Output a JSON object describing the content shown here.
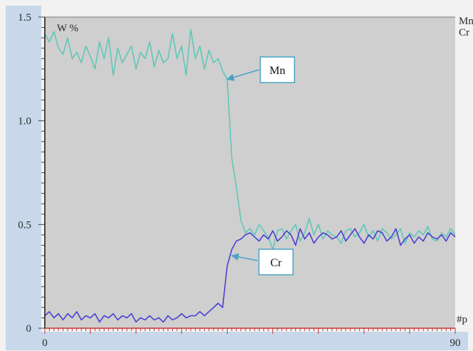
{
  "chart_data": {
    "type": "line",
    "title": "",
    "ylabel": "W %",
    "xlabel": "#p",
    "xlim": [
      0,
      90
    ],
    "ylim": [
      0,
      1.5
    ],
    "x_ticks": [
      "0",
      "90"
    ],
    "y_ticks": [
      "0",
      "0.5",
      "1.0",
      "1.5"
    ],
    "legend": [
      "Mn",
      "Cr"
    ],
    "legend_placement": "top-right (cropped)",
    "grid": false,
    "colors": {
      "plot_background": "#cfcfcf",
      "outer_background": "#f2f2f2",
      "axis_label_background": "#c8d8ea",
      "mn": "#5fc7b8",
      "cr": "#4a3fd0",
      "annotation_border": "#4aa3c6"
    },
    "annotations": [
      {
        "text": "Mn",
        "target_series": "Mn",
        "target": {
          "x": 40,
          "y": 1.2
        }
      },
      {
        "text": "Cr",
        "target_series": "Cr",
        "target": {
          "x": 41,
          "y": 0.35
        }
      }
    ],
    "series": [
      {
        "name": "Mn",
        "x": [
          0,
          1,
          2,
          3,
          4,
          5,
          6,
          7,
          8,
          9,
          10,
          11,
          12,
          13,
          14,
          15,
          16,
          17,
          18,
          19,
          20,
          21,
          22,
          23,
          24,
          25,
          26,
          27,
          28,
          29,
          30,
          31,
          32,
          33,
          34,
          35,
          36,
          37,
          38,
          39,
          40,
          41,
          42,
          43,
          44,
          45,
          46,
          47,
          48,
          49,
          50,
          51,
          52,
          53,
          54,
          55,
          56,
          57,
          58,
          59,
          60,
          61,
          62,
          63,
          64,
          65,
          66,
          67,
          68,
          69,
          70,
          71,
          72,
          73,
          74,
          75,
          76,
          77,
          78,
          79,
          80,
          81,
          82,
          83,
          84,
          85,
          86,
          87,
          88,
          89,
          90
        ],
        "values": [
          1.42,
          1.38,
          1.43,
          1.35,
          1.32,
          1.4,
          1.3,
          1.33,
          1.28,
          1.36,
          1.31,
          1.25,
          1.38,
          1.3,
          1.4,
          1.22,
          1.35,
          1.28,
          1.32,
          1.36,
          1.25,
          1.33,
          1.3,
          1.38,
          1.26,
          1.34,
          1.28,
          1.3,
          1.42,
          1.3,
          1.36,
          1.22,
          1.44,
          1.3,
          1.36,
          1.25,
          1.34,
          1.28,
          1.3,
          1.24,
          1.2,
          0.82,
          0.68,
          0.52,
          0.46,
          0.48,
          0.45,
          0.5,
          0.47,
          0.44,
          0.38,
          0.47,
          0.48,
          0.43,
          0.47,
          0.5,
          0.42,
          0.46,
          0.53,
          0.45,
          0.5,
          0.43,
          0.47,
          0.45,
          0.44,
          0.41,
          0.47,
          0.48,
          0.44,
          0.46,
          0.5,
          0.44,
          0.47,
          0.42,
          0.48,
          0.46,
          0.43,
          0.45,
          0.48,
          0.41,
          0.46,
          0.44,
          0.47,
          0.45,
          0.49,
          0.43,
          0.42,
          0.46,
          0.44,
          0.48,
          0.45
        ]
      },
      {
        "name": "Cr",
        "x": [
          0,
          1,
          2,
          3,
          4,
          5,
          6,
          7,
          8,
          9,
          10,
          11,
          12,
          13,
          14,
          15,
          16,
          17,
          18,
          19,
          20,
          21,
          22,
          23,
          24,
          25,
          26,
          27,
          28,
          29,
          30,
          31,
          32,
          33,
          34,
          35,
          36,
          37,
          38,
          39,
          40,
          41,
          42,
          43,
          44,
          45,
          46,
          47,
          48,
          49,
          50,
          51,
          52,
          53,
          54,
          55,
          56,
          57,
          58,
          59,
          60,
          61,
          62,
          63,
          64,
          65,
          66,
          67,
          68,
          69,
          70,
          71,
          72,
          73,
          74,
          75,
          76,
          77,
          78,
          79,
          80,
          81,
          82,
          83,
          84,
          85,
          86,
          87,
          88,
          89,
          90
        ],
        "values": [
          0.06,
          0.08,
          0.05,
          0.07,
          0.04,
          0.07,
          0.05,
          0.08,
          0.04,
          0.06,
          0.05,
          0.07,
          0.03,
          0.06,
          0.05,
          0.07,
          0.04,
          0.06,
          0.05,
          0.07,
          0.03,
          0.05,
          0.04,
          0.06,
          0.04,
          0.05,
          0.03,
          0.06,
          0.04,
          0.05,
          0.07,
          0.05,
          0.06,
          0.06,
          0.08,
          0.06,
          0.08,
          0.1,
          0.12,
          0.1,
          0.3,
          0.38,
          0.42,
          0.43,
          0.45,
          0.46,
          0.44,
          0.42,
          0.45,
          0.43,
          0.47,
          0.42,
          0.44,
          0.47,
          0.45,
          0.4,
          0.48,
          0.43,
          0.46,
          0.41,
          0.44,
          0.46,
          0.45,
          0.43,
          0.44,
          0.47,
          0.42,
          0.45,
          0.48,
          0.44,
          0.41,
          0.45,
          0.43,
          0.47,
          0.46,
          0.42,
          0.44,
          0.48,
          0.4,
          0.43,
          0.45,
          0.41,
          0.44,
          0.42,
          0.46,
          0.44,
          0.43,
          0.45,
          0.42,
          0.46,
          0.44
        ]
      }
    ]
  }
}
